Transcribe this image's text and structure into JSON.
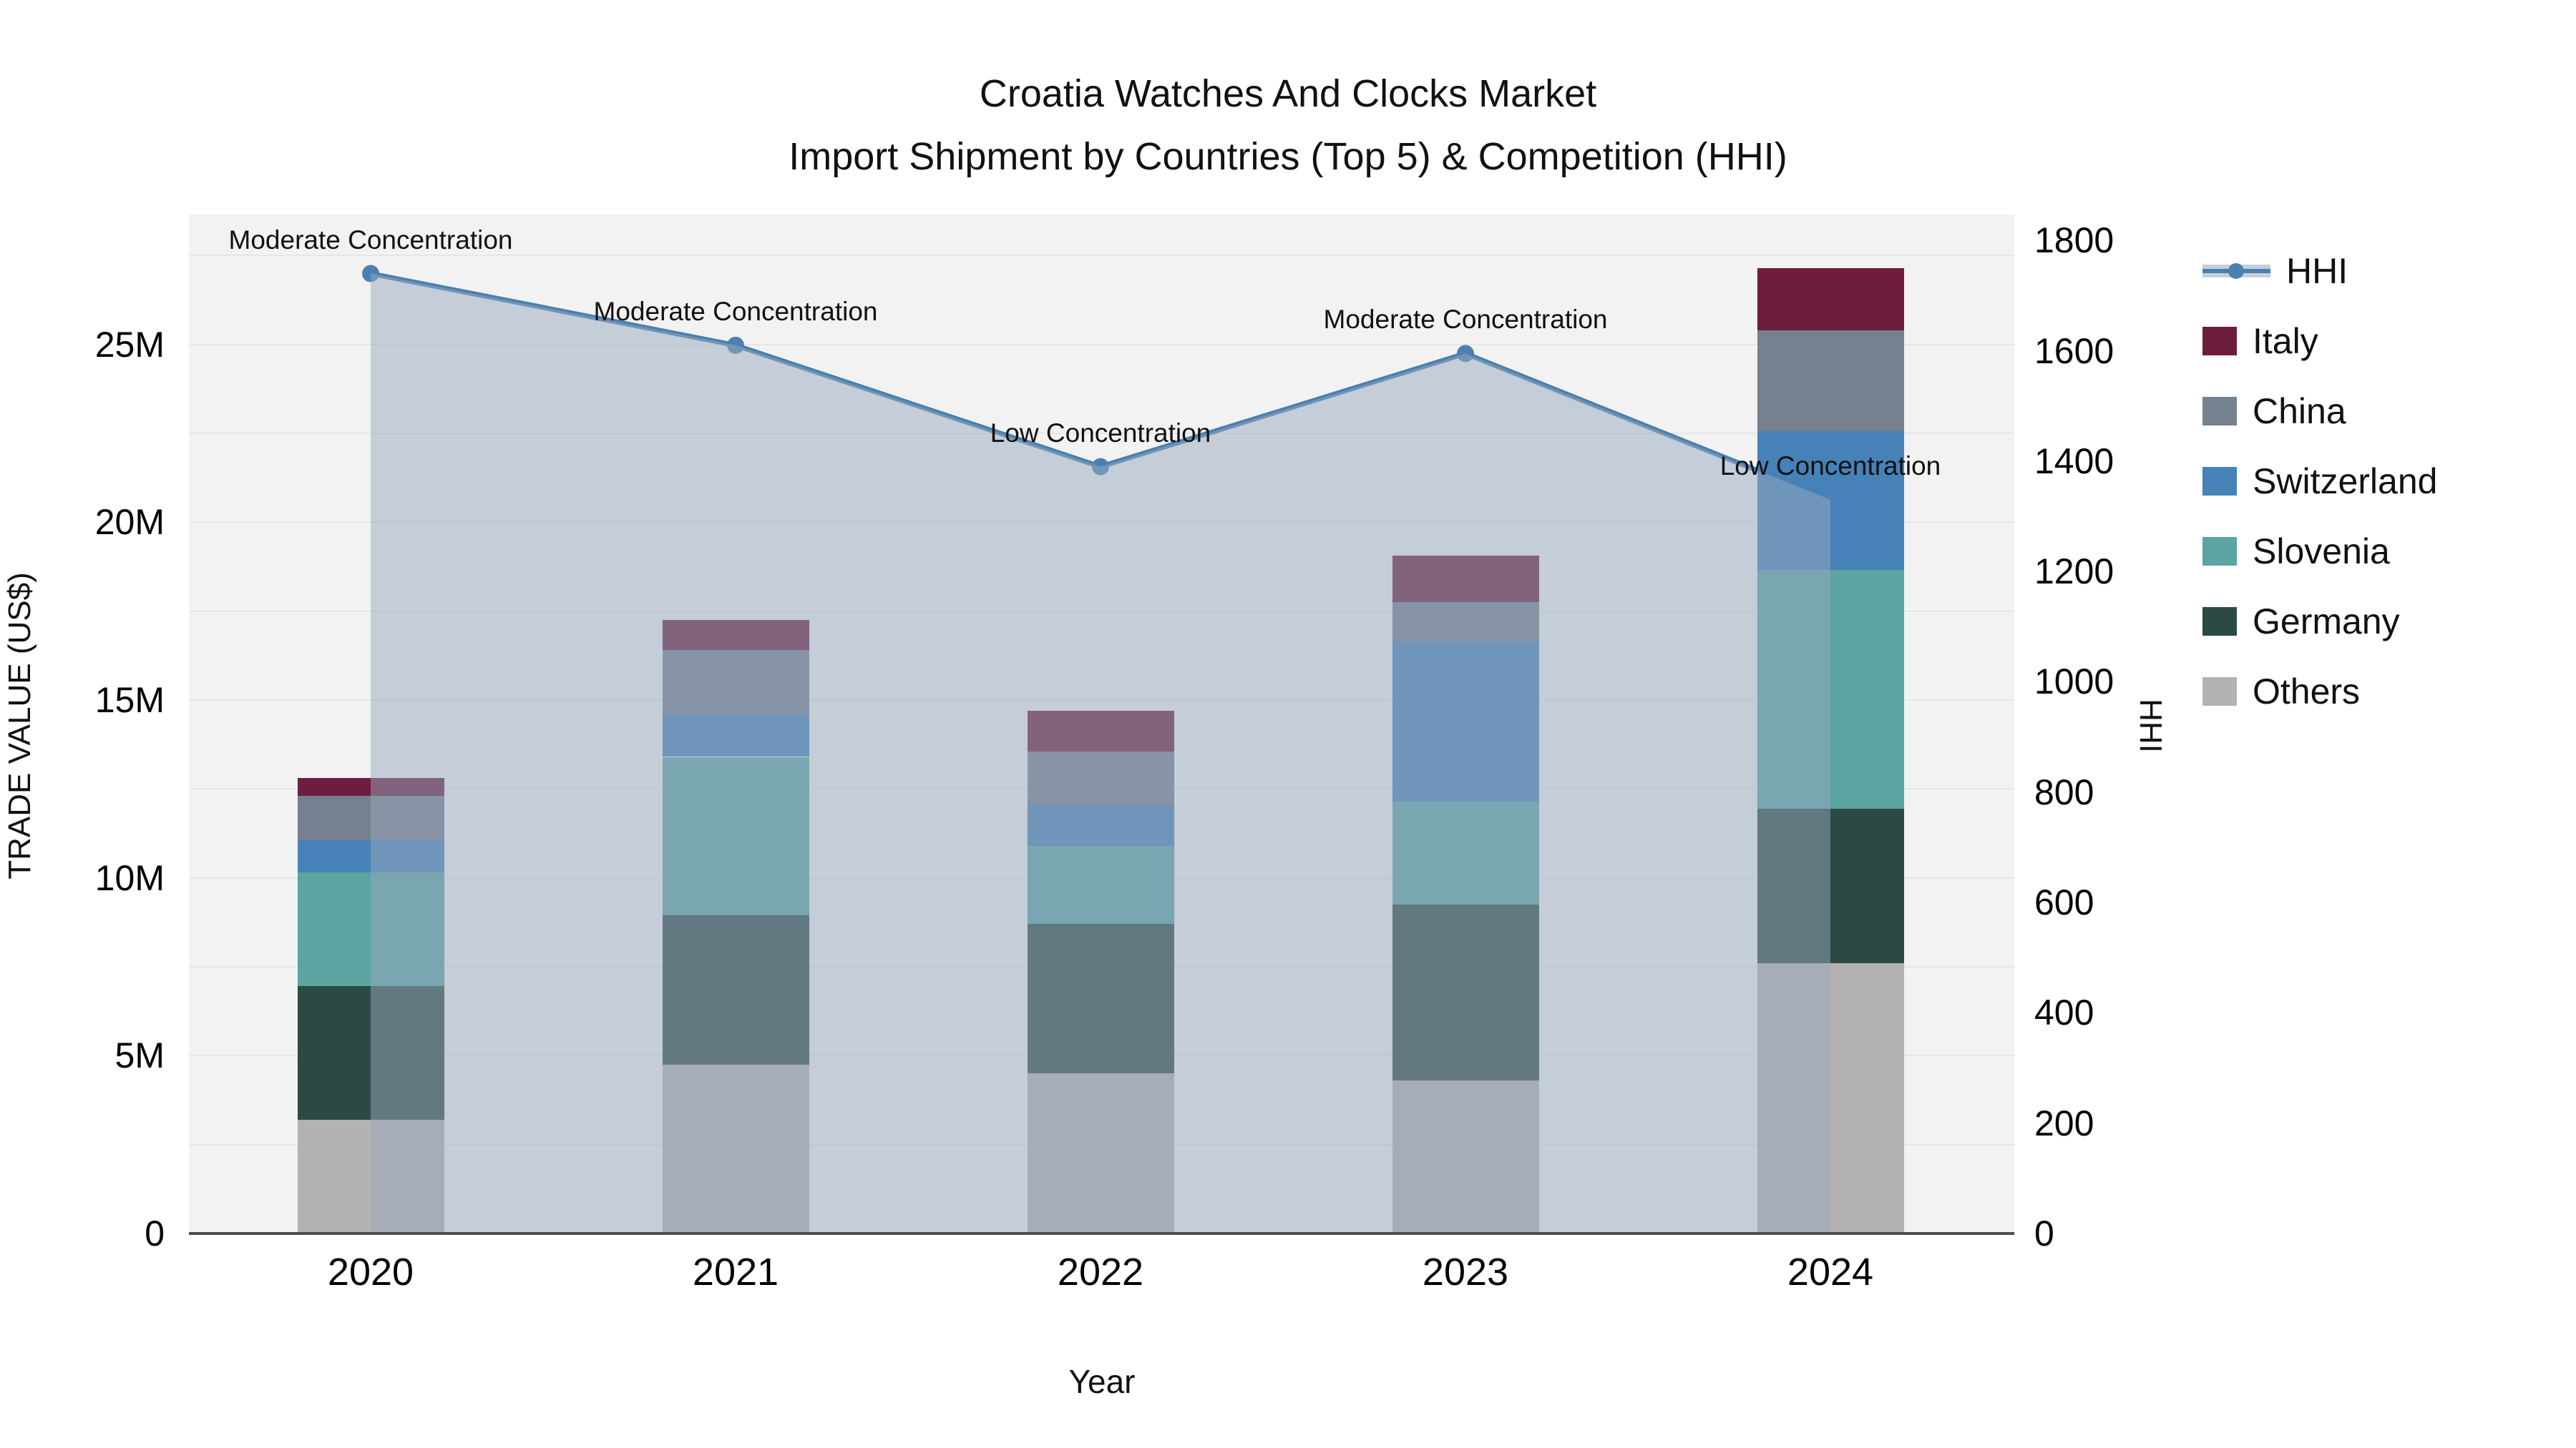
{
  "title": {
    "line1": "Croatia Watches And Clocks Market",
    "line2": "Import Shipment by Countries (Top 5) & Competition (HHI)"
  },
  "axes": {
    "left_label": "TRADE VALUE (US$)",
    "right_label": "HHI",
    "x_label": "Year",
    "left_ticks": [
      {
        "value": 0,
        "label": "0"
      },
      {
        "value": 5,
        "label": "5M"
      },
      {
        "value": 10,
        "label": "10M"
      },
      {
        "value": 15,
        "label": "15M"
      },
      {
        "value": 20,
        "label": "20M"
      },
      {
        "value": 25,
        "label": "25M"
      }
    ],
    "right_ticks": [
      {
        "value": 0,
        "label": "0"
      },
      {
        "value": 200,
        "label": "200"
      },
      {
        "value": 400,
        "label": "400"
      },
      {
        "value": 600,
        "label": "600"
      },
      {
        "value": 800,
        "label": "800"
      },
      {
        "value": 1000,
        "label": "1000"
      },
      {
        "value": 1200,
        "label": "1200"
      },
      {
        "value": 1400,
        "label": "1400"
      },
      {
        "value": 1600,
        "label": "1600"
      },
      {
        "value": 1800,
        "label": "1800"
      }
    ]
  },
  "legend": [
    {
      "label": "HHI",
      "type": "line",
      "color": "#4a80b0",
      "band": "rgba(152,167,190,0.55)"
    },
    {
      "label": "Italy",
      "type": "patch",
      "color": "#6e1d3e"
    },
    {
      "label": "China",
      "type": "patch",
      "color": "#75818f"
    },
    {
      "label": "Switzerland",
      "type": "patch",
      "color": "#4682b8"
    },
    {
      "label": "Slovenia",
      "type": "patch",
      "color": "#5ba4a2"
    },
    {
      "label": "Germany",
      "type": "patch",
      "color": "#2c4a45"
    },
    {
      "label": "Others",
      "type": "patch",
      "color": "#b4b2b0"
    }
  ],
  "chart_data": {
    "type": "bar+line",
    "title": "Croatia Watches And Clocks Market — Import Shipment by Countries (Top 5) & Competition (HHI)",
    "xlabel": "Year",
    "ylabel": "TRADE VALUE (US$)",
    "y2label": "HHI",
    "categories": [
      "2020",
      "2021",
      "2022",
      "2023",
      "2024"
    ],
    "stack_order_bottom_to_top": [
      "Others",
      "Germany",
      "Slovenia",
      "Switzerland",
      "China",
      "Italy"
    ],
    "series": [
      {
        "name": "Others",
        "color": "#b4b2b0",
        "values_musd": [
          3.2,
          4.75,
          4.5,
          4.3,
          7.6
        ]
      },
      {
        "name": "Germany",
        "color": "#2c4a45",
        "values_musd": [
          3.75,
          4.2,
          4.2,
          4.95,
          4.35
        ]
      },
      {
        "name": "Slovenia",
        "color": "#5ba4a2",
        "values_musd": [
          3.2,
          4.45,
          2.2,
          2.9,
          6.7
        ]
      },
      {
        "name": "Switzerland",
        "color": "#4682b8",
        "values_musd": [
          0.9,
          1.2,
          1.15,
          4.5,
          3.9
        ]
      },
      {
        "name": "China",
        "color": "#75818f",
        "values_musd": [
          1.25,
          1.8,
          1.5,
          1.1,
          2.85
        ]
      },
      {
        "name": "Italy",
        "color": "#6e1d3e",
        "values_musd": [
          0.5,
          0.85,
          1.15,
          1.3,
          1.75
        ]
      }
    ],
    "bar_totals_musd": [
      12.8,
      17.25,
      14.7,
      19.05,
      27.15
    ],
    "hhi_line": {
      "name": "HHI",
      "color": "#4a80b0",
      "area_fill": "rgba(152,167,190,0.5)",
      "values": [
        1740,
        1610,
        1390,
        1595,
        1330
      ],
      "annotations": [
        "Moderate Concentration",
        "Moderate Concentration",
        "Low Concentration",
        "Moderate Concentration",
        "Low Concentration"
      ]
    },
    "ylim_musd": [
      0,
      28.65
    ],
    "y2lim": [
      0,
      1847
    ],
    "grid": "horizontal, every 2.5M",
    "legend_position": "right"
  },
  "colors": {
    "plot_background": "#f2f2f2",
    "figure_background": "#ffffff",
    "gridline": "#e6e6e6",
    "axis_line": "#4d4d4d",
    "text": "#111111"
  }
}
